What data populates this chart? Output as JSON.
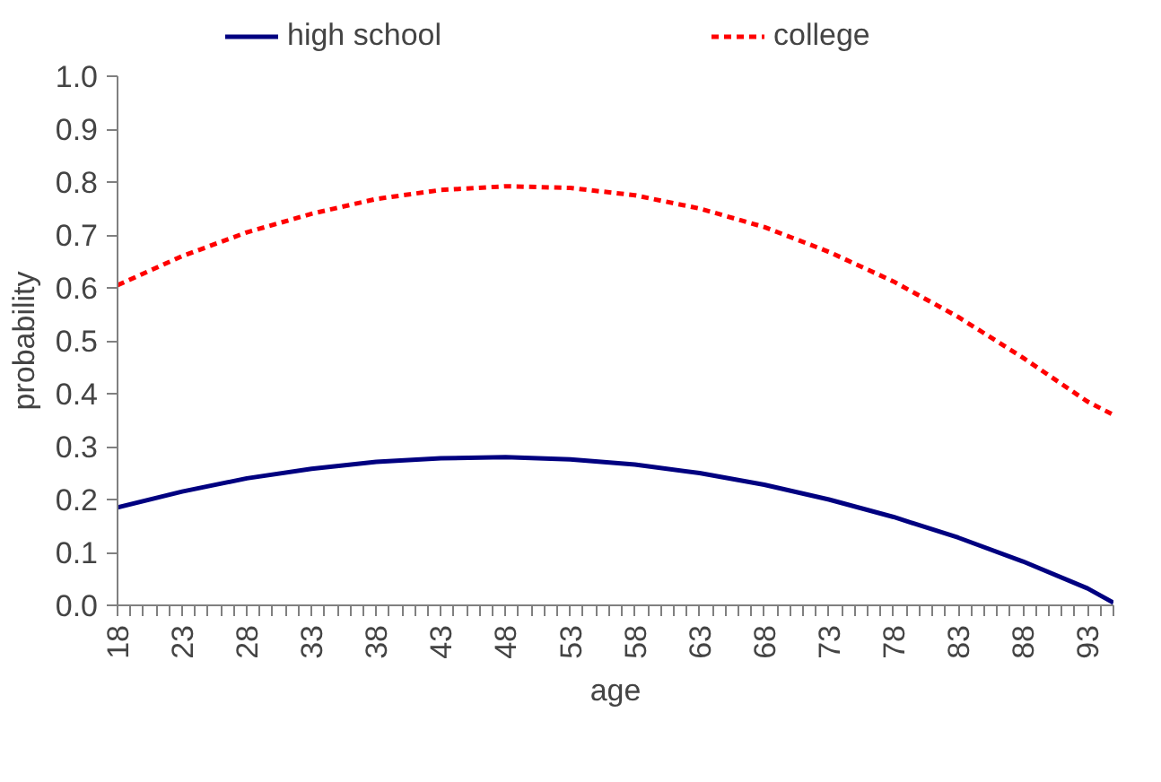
{
  "chart_data": {
    "type": "line",
    "xlabel": "age",
    "ylabel": "probability",
    "x": [
      18,
      23,
      28,
      33,
      38,
      43,
      48,
      53,
      58,
      63,
      68,
      73,
      78,
      83,
      88,
      93,
      95
    ],
    "xlim": [
      18,
      95
    ],
    "xticks": [
      {
        "value": 18,
        "label": "18"
      },
      {
        "value": 19,
        "label": null
      },
      {
        "value": 20,
        "label": null
      },
      {
        "value": 21,
        "label": null
      },
      {
        "value": 22,
        "label": null
      },
      {
        "value": 23,
        "label": "23"
      },
      {
        "value": 24,
        "label": null
      },
      {
        "value": 25,
        "label": null
      },
      {
        "value": 26,
        "label": null
      },
      {
        "value": 27,
        "label": null
      },
      {
        "value": 28,
        "label": "28"
      },
      {
        "value": 29,
        "label": null
      },
      {
        "value": 30,
        "label": null
      },
      {
        "value": 31,
        "label": null
      },
      {
        "value": 32,
        "label": null
      },
      {
        "value": 33,
        "label": "33"
      },
      {
        "value": 34,
        "label": null
      },
      {
        "value": 35,
        "label": null
      },
      {
        "value": 36,
        "label": null
      },
      {
        "value": 37,
        "label": null
      },
      {
        "value": 38,
        "label": "38"
      },
      {
        "value": 39,
        "label": null
      },
      {
        "value": 40,
        "label": null
      },
      {
        "value": 41,
        "label": null
      },
      {
        "value": 42,
        "label": null
      },
      {
        "value": 43,
        "label": "43"
      },
      {
        "value": 44,
        "label": null
      },
      {
        "value": 45,
        "label": null
      },
      {
        "value": 46,
        "label": null
      },
      {
        "value": 47,
        "label": null
      },
      {
        "value": 48,
        "label": "48"
      },
      {
        "value": 49,
        "label": null
      },
      {
        "value": 50,
        "label": null
      },
      {
        "value": 51,
        "label": null
      },
      {
        "value": 52,
        "label": null
      },
      {
        "value": 53,
        "label": "53"
      },
      {
        "value": 54,
        "label": null
      },
      {
        "value": 55,
        "label": null
      },
      {
        "value": 56,
        "label": null
      },
      {
        "value": 57,
        "label": null
      },
      {
        "value": 58,
        "label": "58"
      },
      {
        "value": 59,
        "label": null
      },
      {
        "value": 60,
        "label": null
      },
      {
        "value": 61,
        "label": null
      },
      {
        "value": 62,
        "label": null
      },
      {
        "value": 63,
        "label": "63"
      },
      {
        "value": 64,
        "label": null
      },
      {
        "value": 65,
        "label": null
      },
      {
        "value": 66,
        "label": null
      },
      {
        "value": 67,
        "label": null
      },
      {
        "value": 68,
        "label": "68"
      },
      {
        "value": 69,
        "label": null
      },
      {
        "value": 70,
        "label": null
      },
      {
        "value": 71,
        "label": null
      },
      {
        "value": 72,
        "label": null
      },
      {
        "value": 73,
        "label": "73"
      },
      {
        "value": 74,
        "label": null
      },
      {
        "value": 75,
        "label": null
      },
      {
        "value": 76,
        "label": null
      },
      {
        "value": 77,
        "label": null
      },
      {
        "value": 78,
        "label": "78"
      },
      {
        "value": 79,
        "label": null
      },
      {
        "value": 80,
        "label": null
      },
      {
        "value": 81,
        "label": null
      },
      {
        "value": 82,
        "label": null
      },
      {
        "value": 83,
        "label": "83"
      },
      {
        "value": 84,
        "label": null
      },
      {
        "value": 85,
        "label": null
      },
      {
        "value": 86,
        "label": null
      },
      {
        "value": 87,
        "label": null
      },
      {
        "value": 88,
        "label": "88"
      },
      {
        "value": 89,
        "label": null
      },
      {
        "value": 90,
        "label": null
      },
      {
        "value": 91,
        "label": null
      },
      {
        "value": 92,
        "label": null
      },
      {
        "value": 93,
        "label": "93"
      },
      {
        "value": 94,
        "label": null
      },
      {
        "value": 95,
        "label": null
      }
    ],
    "ylim": [
      0,
      1
    ],
    "yticks": [
      {
        "value": 0,
        "label": "0.0"
      },
      0.1,
      0.2,
      0.3,
      0.4,
      0.5,
      0.6,
      0.7,
      0.8,
      0.9,
      {
        "value": 1,
        "label": "1.0"
      }
    ],
    "grid": false,
    "legend": "top",
    "marker": "none",
    "series": [
      {
        "name": "high school",
        "color": "#000080",
        "line_style": "solid",
        "values": [
          0.185,
          0.215,
          0.24,
          0.258,
          0.271,
          0.278,
          0.28,
          0.276,
          0.266,
          0.25,
          0.228,
          0.2,
          0.167,
          0.128,
          0.083,
          0.032,
          0.005
        ]
      },
      {
        "name": "college",
        "color": "#ff0000",
        "line_style": "dashed",
        "values": [
          0.605,
          0.66,
          0.705,
          0.74,
          0.768,
          0.785,
          0.792,
          0.789,
          0.775,
          0.75,
          0.715,
          0.668,
          0.612,
          0.545,
          0.468,
          0.385,
          0.36
        ]
      }
    ]
  }
}
